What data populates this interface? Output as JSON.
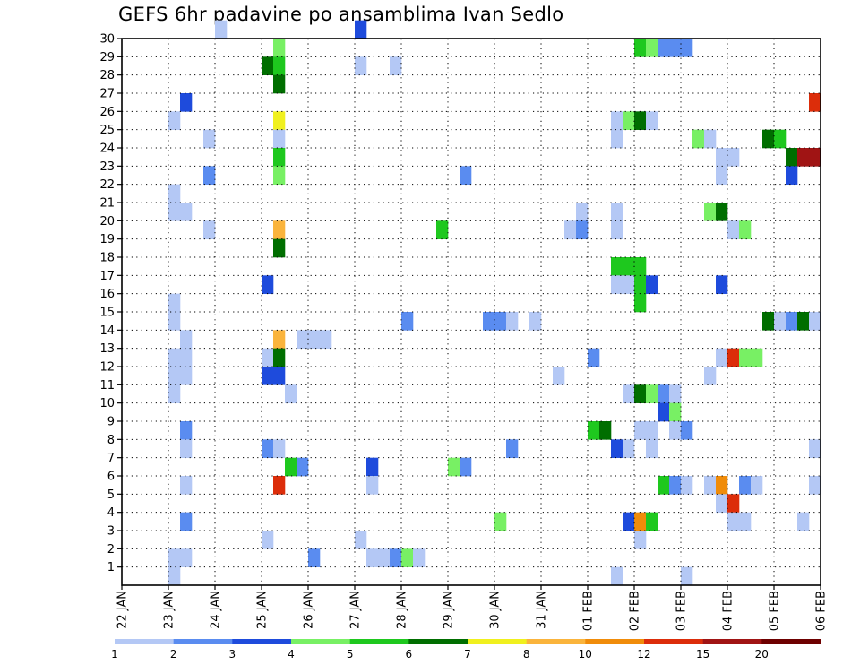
{
  "chart_data": {
    "type": "heatmap",
    "title": "GEFS 6hr padavine po ansamblima Ivan Sedlo",
    "xlabel": "",
    "ylabel": "",
    "x_tick_labels": [
      "22 JAN",
      "23 JAN",
      "24 JAN",
      "25 JAN",
      "26 JAN",
      "27 JAN",
      "28 JAN",
      "29 JAN",
      "30 JAN",
      "31 JAN",
      "01 FEB",
      "02 FEB",
      "03 FEB",
      "04 FEB",
      "05 FEB",
      "06 FEB"
    ],
    "y_tick_labels": [
      "1",
      "2",
      "3",
      "4",
      "5",
      "6",
      "7",
      "8",
      "9",
      "10",
      "11",
      "12",
      "13",
      "14",
      "15",
      "16",
      "17",
      "18",
      "19",
      "20",
      "21",
      "22",
      "23",
      "24",
      "25",
      "26",
      "27",
      "28",
      "29",
      "30"
    ],
    "xlim": [
      0,
      60
    ],
    "ylim": [
      0,
      30
    ],
    "colorbar": {
      "labels": [
        "1",
        "2",
        "3",
        "4",
        "5",
        "6",
        "7",
        "8",
        "10",
        "12",
        "15",
        "20"
      ],
      "colors": [
        "#b4c8f5",
        "#5a8cf0",
        "#1e4bdc",
        "#78f064",
        "#1ec81e",
        "#006e00",
        "#f0f01e",
        "#fab43c",
        "#f08c0a",
        "#dc2d0a",
        "#a01414",
        "#6e0000"
      ]
    },
    "cells": [
      [
        8,
        30,
        0
      ],
      [
        20,
        30,
        2
      ],
      [
        13,
        29,
        3
      ],
      [
        44,
        29,
        4
      ],
      [
        45,
        29,
        3
      ],
      [
        46,
        29,
        1
      ],
      [
        47,
        29,
        1
      ],
      [
        48,
        29,
        1
      ],
      [
        12,
        28,
        5
      ],
      [
        13,
        28,
        4
      ],
      [
        20,
        28,
        0
      ],
      [
        23,
        28,
        0
      ],
      [
        13,
        27,
        5
      ],
      [
        5,
        26,
        2
      ],
      [
        59,
        26,
        9
      ],
      [
        4,
        25,
        0
      ],
      [
        13,
        25,
        6
      ],
      [
        42,
        25,
        0
      ],
      [
        43,
        25,
        3
      ],
      [
        44,
        25,
        5
      ],
      [
        45,
        25,
        0
      ],
      [
        7,
        24,
        0
      ],
      [
        13,
        24,
        0
      ],
      [
        42,
        24,
        0
      ],
      [
        49,
        24,
        3
      ],
      [
        50,
        24,
        0
      ],
      [
        55,
        24,
        5
      ],
      [
        56,
        24,
        4
      ],
      [
        13,
        23,
        4
      ],
      [
        51,
        23,
        0
      ],
      [
        52,
        23,
        0
      ],
      [
        57,
        23,
        5
      ],
      [
        58,
        23,
        10
      ],
      [
        59,
        23,
        10
      ],
      [
        7,
        22,
        1
      ],
      [
        13,
        22,
        3
      ],
      [
        29,
        22,
        1
      ],
      [
        51,
        22,
        0
      ],
      [
        57,
        22,
        2
      ],
      [
        4,
        21,
        0
      ],
      [
        4,
        20,
        0
      ],
      [
        5,
        20,
        0
      ],
      [
        39,
        20,
        0
      ],
      [
        42,
        20,
        0
      ],
      [
        50,
        20,
        3
      ],
      [
        51,
        20,
        5
      ],
      [
        7,
        19,
        0
      ],
      [
        13,
        19,
        7
      ],
      [
        27,
        19,
        4
      ],
      [
        38,
        19,
        0
      ],
      [
        39,
        19,
        1
      ],
      [
        42,
        19,
        0
      ],
      [
        52,
        19,
        0
      ],
      [
        53,
        19,
        3
      ],
      [
        13,
        18,
        5
      ],
      [
        42,
        17,
        4
      ],
      [
        43,
        17,
        4
      ],
      [
        44,
        17,
        4
      ],
      [
        12,
        16,
        2
      ],
      [
        42,
        16,
        0
      ],
      [
        43,
        16,
        0
      ],
      [
        44,
        16,
        4
      ],
      [
        45,
        16,
        2
      ],
      [
        51,
        16,
        2
      ],
      [
        4,
        15,
        0
      ],
      [
        44,
        15,
        4
      ],
      [
        4,
        14,
        0
      ],
      [
        24,
        14,
        1
      ],
      [
        31,
        14,
        1
      ],
      [
        32,
        14,
        1
      ],
      [
        33,
        14,
        0
      ],
      [
        35,
        14,
        0
      ],
      [
        55,
        14,
        5
      ],
      [
        56,
        14,
        0
      ],
      [
        57,
        14,
        1
      ],
      [
        58,
        14,
        5
      ],
      [
        59,
        14,
        0
      ],
      [
        5,
        13,
        0
      ],
      [
        13,
        13,
        7
      ],
      [
        15,
        13,
        0
      ],
      [
        16,
        13,
        0
      ],
      [
        17,
        13,
        0
      ],
      [
        4,
        12,
        0
      ],
      [
        5,
        12,
        0
      ],
      [
        12,
        12,
        0
      ],
      [
        13,
        12,
        5
      ],
      [
        40,
        12,
        1
      ],
      [
        51,
        12,
        0
      ],
      [
        52,
        12,
        9
      ],
      [
        53,
        12,
        3
      ],
      [
        54,
        12,
        3
      ],
      [
        4,
        11,
        0
      ],
      [
        5,
        11,
        0
      ],
      [
        12,
        11,
        2
      ],
      [
        13,
        11,
        2
      ],
      [
        37,
        11,
        0
      ],
      [
        50,
        11,
        0
      ],
      [
        4,
        10,
        0
      ],
      [
        14,
        10,
        0
      ],
      [
        43,
        10,
        0
      ],
      [
        44,
        10,
        5
      ],
      [
        45,
        10,
        3
      ],
      [
        46,
        10,
        1
      ],
      [
        47,
        10,
        0
      ],
      [
        46,
        9,
        2
      ],
      [
        47,
        9,
        3
      ],
      [
        5,
        8,
        1
      ],
      [
        40,
        8,
        4
      ],
      [
        41,
        8,
        5
      ],
      [
        44,
        8,
        0
      ],
      [
        45,
        8,
        0
      ],
      [
        47,
        8,
        0
      ],
      [
        48,
        8,
        1
      ],
      [
        5,
        7,
        0
      ],
      [
        12,
        7,
        1
      ],
      [
        13,
        7,
        0
      ],
      [
        33,
        7,
        1
      ],
      [
        42,
        7,
        2
      ],
      [
        43,
        7,
        0
      ],
      [
        45,
        7,
        0
      ],
      [
        59,
        7,
        0
      ],
      [
        14,
        6,
        4
      ],
      [
        15,
        6,
        1
      ],
      [
        21,
        6,
        2
      ],
      [
        28,
        6,
        3
      ],
      [
        29,
        6,
        1
      ],
      [
        5,
        5,
        0
      ],
      [
        13,
        5,
        9
      ],
      [
        21,
        5,
        0
      ],
      [
        46,
        5,
        4
      ],
      [
        47,
        5,
        1
      ],
      [
        48,
        5,
        0
      ],
      [
        50,
        5,
        0
      ],
      [
        51,
        5,
        8
      ],
      [
        53,
        5,
        1
      ],
      [
        54,
        5,
        0
      ],
      [
        59,
        5,
        0
      ],
      [
        51,
        4,
        0
      ],
      [
        52,
        4,
        9
      ],
      [
        5,
        3,
        1
      ],
      [
        32,
        3,
        3
      ],
      [
        43,
        3,
        2
      ],
      [
        44,
        3,
        8
      ],
      [
        45,
        3,
        4
      ],
      [
        52,
        3,
        0
      ],
      [
        53,
        3,
        0
      ],
      [
        58,
        3,
        0
      ],
      [
        12,
        2,
        0
      ],
      [
        20,
        2,
        0
      ],
      [
        44,
        2,
        0
      ],
      [
        4,
        1,
        0
      ],
      [
        5,
        1,
        0
      ],
      [
        16,
        1,
        1
      ],
      [
        21,
        1,
        0
      ],
      [
        22,
        1,
        0
      ],
      [
        23,
        1,
        1
      ],
      [
        24,
        1,
        3
      ],
      [
        25,
        1,
        0
      ],
      [
        4,
        0,
        0
      ],
      [
        42,
        0,
        0
      ],
      [
        48,
        0,
        0
      ]
    ]
  }
}
